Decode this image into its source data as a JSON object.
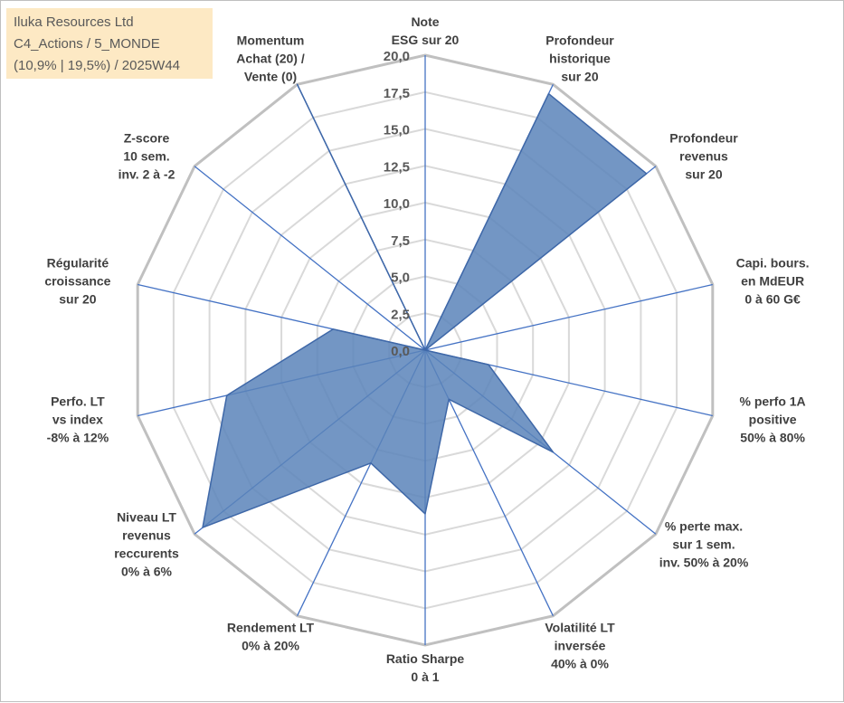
{
  "info": {
    "line1": "Iluka Resources Ltd",
    "line2": "C4_Actions / 5_MONDE",
    "line3": "(10,9% | 19,5%) / 2025W44"
  },
  "colors": {
    "fill": "#5b84ba",
    "stroke": "#3f68a8",
    "axis": "#4472c4",
    "grid_outer": "#c0c0c0",
    "grid_inner": "#d9d9d9"
  },
  "chart_data": {
    "type": "radar",
    "title": "",
    "rmax": 20,
    "ticks": [
      "0,0",
      "2,5",
      "5,0",
      "7,5",
      "10,0",
      "12,5",
      "15,0",
      "17,5",
      "20,0"
    ],
    "axes": [
      {
        "lines": [
          "Note",
          "ESG sur 20"
        ]
      },
      {
        "lines": [
          "Profondeur",
          "historique",
          "sur 20"
        ]
      },
      {
        "lines": [
          "Profondeur",
          "revenus",
          "sur 20"
        ]
      },
      {
        "lines": [
          "Capi. bours.",
          "en MdEUR",
          "0 à 60 G€"
        ]
      },
      {
        "lines": [
          "% perfo 1A",
          "positive",
          "50% à 80%"
        ]
      },
      {
        "lines": [
          "% perte max.",
          "sur 1 sem.",
          "inv. 50% à 20%"
        ]
      },
      {
        "lines": [
          "Volatilité LT",
          "inversée",
          "40% à 0%"
        ]
      },
      {
        "lines": [
          "Ratio Sharpe",
          "0 à 1"
        ]
      },
      {
        "lines": [
          "Rendement LT",
          "0% à 20%"
        ]
      },
      {
        "lines": [
          "Niveau LT",
          "revenus",
          "reccurents",
          "0% à 6%"
        ]
      },
      {
        "lines": [
          "Perfo. LT",
          "vs index",
          "-8% à 12%"
        ]
      },
      {
        "lines": [
          "Régularité",
          "croissance",
          "sur 20"
        ]
      },
      {
        "lines": [
          "Z-score",
          "10 sem.",
          "inv. 2 à -2"
        ]
      },
      {
        "lines": [
          "Momentum",
          "Achat (20) /",
          "Vente (0)"
        ]
      }
    ],
    "series": [
      {
        "name": "Iluka Resources Ltd",
        "values": [
          0,
          19.3,
          19.2,
          0,
          4.4,
          11.1,
          3.7,
          11.1,
          8.5,
          19.3,
          13.8,
          6.4,
          0,
          20
        ]
      }
    ]
  }
}
